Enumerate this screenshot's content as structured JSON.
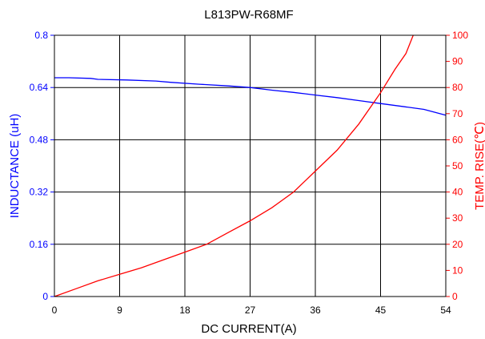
{
  "chart_data": {
    "type": "line",
    "title": "L813PW-R68MF",
    "xlabel": "DC CURRENT(A)",
    "ylabel_left": "INDUCTANCE (uH)",
    "ylabel_right": "TEMP. RISE(℃)",
    "x_ticks": [
      "0",
      "9",
      "18",
      "27",
      "36",
      "45",
      "54"
    ],
    "y_left_ticks": [
      "0",
      "0.16",
      "0.32",
      "0.48",
      "0.64",
      "0.8"
    ],
    "y_right_ticks": [
      "0",
      "10",
      "20",
      "30",
      "40",
      "50",
      "60",
      "70",
      "80",
      "90",
      "100"
    ],
    "xlim": [
      0,
      54
    ],
    "ylim_left": [
      0,
      0.8
    ],
    "ylim_right": [
      0,
      100
    ],
    "grid": true,
    "colors": {
      "inductance": "#0000ff",
      "temp_rise": "#ff0000",
      "grid": "#000000"
    },
    "series": [
      {
        "axis": "left",
        "color": "#0000ff",
        "x": [
          0,
          2,
          5,
          6,
          10,
          14,
          16,
          20,
          24,
          27,
          30,
          33,
          36,
          39,
          42,
          45,
          48,
          51,
          54
        ],
        "y": [
          0.67,
          0.67,
          0.668,
          0.665,
          0.663,
          0.66,
          0.656,
          0.65,
          0.645,
          0.64,
          0.632,
          0.625,
          0.617,
          0.609,
          0.6,
          0.591,
          0.582,
          0.573,
          0.555
        ]
      },
      {
        "axis": "right",
        "color": "#ff0000",
        "x": [
          0,
          3,
          6,
          9,
          12,
          15,
          18,
          21,
          24,
          27,
          30,
          33,
          36,
          39,
          42,
          45,
          47,
          48.5,
          49.5
        ],
        "y": [
          0,
          3,
          6,
          8.5,
          11,
          14,
          17,
          20,
          24.5,
          29,
          34,
          40,
          48,
          56,
          66,
          78,
          87,
          93,
          100
        ]
      }
    ]
  }
}
